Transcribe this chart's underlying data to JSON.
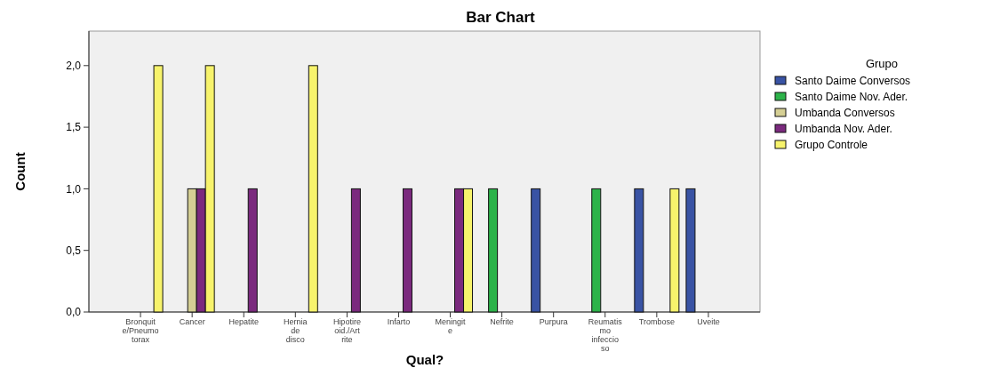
{
  "chart_data": {
    "type": "bar",
    "title": "Bar Chart",
    "xlabel": "Qual?",
    "ylabel": "Count",
    "legend_title": "Grupo",
    "legend": "right",
    "grid": false,
    "categories": [
      "Bronquite/Pneumotorax",
      "Cancer",
      "Hepatite",
      "Hernia de disco",
      "Hipotireoid./Artrite",
      "Infarto",
      "Meningite",
      "Nefrite",
      "Purpura",
      "Reumatismo infeccioso",
      "Trombose",
      "Uveite"
    ],
    "ylim": [
      0,
      2.28
    ],
    "yticks": [
      {
        "value": 0,
        "label": "0,0"
      },
      {
        "value": 0.5,
        "label": "0,5"
      },
      {
        "value": 1,
        "label": "1,0"
      },
      {
        "value": 1.5,
        "label": "1,5"
      },
      {
        "value": 2,
        "label": "2,0"
      }
    ],
    "series": [
      {
        "name": "Santo Daime Conversos",
        "color": "#3953a4",
        "values": [
          null,
          null,
          null,
          null,
          null,
          null,
          null,
          null,
          1,
          null,
          1,
          1
        ]
      },
      {
        "name": "Santo Daime Nov. Ader.",
        "color": "#2db34a",
        "values": [
          null,
          null,
          null,
          null,
          null,
          null,
          null,
          1,
          null,
          1,
          null,
          null
        ]
      },
      {
        "name": "Umbanda Conversos",
        "color": "#d5cf94",
        "values": [
          null,
          1,
          null,
          null,
          null,
          null,
          null,
          null,
          null,
          null,
          null,
          null
        ]
      },
      {
        "name": "Umbanda Nov. Ader.",
        "color": "#7b2a7e",
        "values": [
          null,
          1,
          1,
          null,
          1,
          1,
          1,
          null,
          null,
          null,
          null,
          null
        ]
      },
      {
        "name": "Grupo Controle",
        "color": "#f7f36c",
        "values": [
          2,
          2,
          null,
          2,
          null,
          null,
          1,
          null,
          null,
          null,
          1,
          null
        ]
      }
    ]
  }
}
